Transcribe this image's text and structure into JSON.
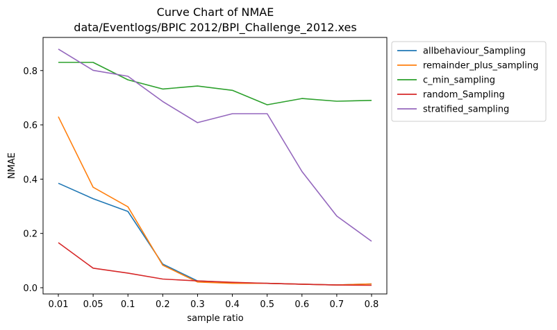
{
  "chart_data": {
    "type": "line",
    "title": "Curve Chart of NMAE",
    "subtitle": "data/Eventlogs/BPIC 2012/BPI_Challenge_2012.xes",
    "xlabel": "sample ratio",
    "ylabel": "NMAE",
    "categories": [
      "0.01",
      "0.05",
      "0.1",
      "0.2",
      "0.3",
      "0.4",
      "0.5",
      "0.6",
      "0.7",
      "0.8"
    ],
    "ylim": [
      -0.023,
      0.922
    ],
    "yticks": [
      0.0,
      0.2,
      0.4,
      0.6,
      0.8
    ],
    "ytick_labels": [
      "0.0",
      "0.2",
      "0.4",
      "0.6",
      "0.8"
    ],
    "grid": false,
    "legend_position": "outside-top-right",
    "series": [
      {
        "name": "allbehaviour_Sampling",
        "color": "#1f77b4",
        "values": [
          0.385,
          0.328,
          0.281,
          0.087,
          0.025,
          0.019,
          0.016,
          0.013,
          0.01,
          0.014
        ]
      },
      {
        "name": "remainder_plus_sampling",
        "color": "#ff7f0e",
        "values": [
          0.63,
          0.37,
          0.298,
          0.083,
          0.021,
          0.016,
          0.016,
          0.013,
          0.01,
          0.014
        ]
      },
      {
        "name": "c_min_sampling",
        "color": "#2ca02c",
        "values": [
          0.83,
          0.83,
          0.766,
          0.732,
          0.743,
          0.727,
          0.674,
          0.697,
          0.687,
          0.69
        ]
      },
      {
        "name": "random_Sampling",
        "color": "#d62728",
        "values": [
          0.166,
          0.072,
          0.054,
          0.032,
          0.025,
          0.02,
          0.016,
          0.013,
          0.01,
          0.009
        ]
      },
      {
        "name": "stratified_sampling",
        "color": "#9467bd",
        "values": [
          0.879,
          0.801,
          0.779,
          0.686,
          0.608,
          0.641,
          0.641,
          0.428,
          0.264,
          0.171
        ]
      }
    ]
  }
}
